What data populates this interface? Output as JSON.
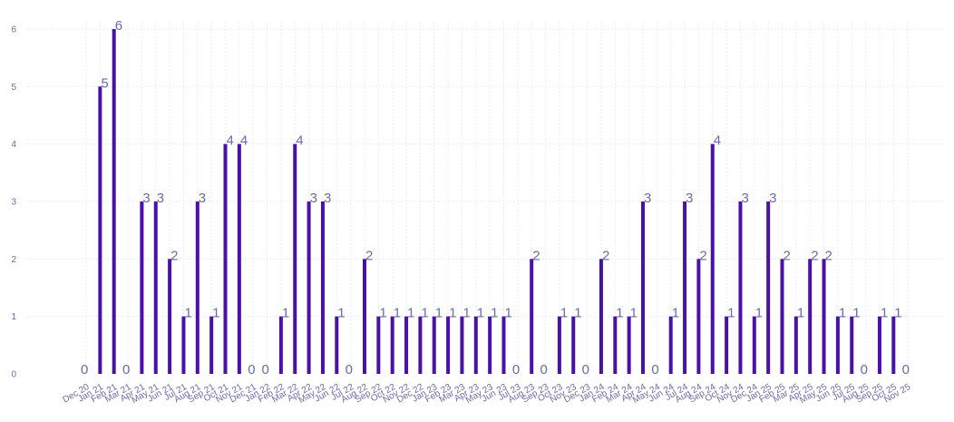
{
  "chart_data": {
    "type": "bar",
    "title": "",
    "xlabel": "",
    "ylabel": "",
    "ylim": [
      0,
      6
    ],
    "yticks": [
      0,
      1,
      2,
      3,
      4,
      5,
      6
    ],
    "grid": true,
    "legend": "none",
    "bar_color": "#4a11a6",
    "label_color": "#6a6ab0",
    "categories": [
      "Dec 20",
      "Jan 21",
      "Feb 21",
      "Mar 21",
      "Apr 21",
      "May 21",
      "Jun 21",
      "Jul 21",
      "Aug 21",
      "Sep 21",
      "Oct 21",
      "Nov 21",
      "Dec 21",
      "Jan 22",
      "Feb 22",
      "Mar 22",
      "Apr 22",
      "May 22",
      "Jun 22",
      "Jul 22",
      "Aug 22",
      "Sep 22",
      "Oct 22",
      "Nov 22",
      "Dec 22",
      "Jan 23",
      "Feb 23",
      "Mar 23",
      "Apr 23",
      "May 23",
      "Jun 23",
      "Jul 23",
      "Aug 23",
      "Sep 23",
      "Oct 23",
      "Nov 23",
      "Dec 23",
      "Jan 24",
      "Feb 24",
      "Mar 24",
      "Apr 24",
      "May 24",
      "Jun 24",
      "Jul 24",
      "Aug 24",
      "Sep 24",
      "Oct 24",
      "Nov 24",
      "Dec 24",
      "Jan 25",
      "Feb 25",
      "Mar 25",
      "Apr 25",
      "May 25",
      "Jun 25",
      "Jul 25",
      "Aug 25",
      "Sep 25",
      "Oct 25",
      "Nov 25"
    ],
    "values": [
      0,
      5,
      6,
      0,
      3,
      3,
      2,
      1,
      3,
      1,
      4,
      4,
      0,
      0,
      1,
      4,
      3,
      3,
      1,
      0,
      2,
      1,
      1,
      1,
      1,
      1,
      1,
      1,
      1,
      1,
      1,
      0,
      2,
      0,
      1,
      1,
      0,
      2,
      1,
      1,
      3,
      0,
      1,
      3,
      2,
      4,
      1,
      3,
      1,
      3,
      2,
      1,
      2,
      2,
      1,
      1,
      0,
      1,
      1,
      0
    ]
  }
}
